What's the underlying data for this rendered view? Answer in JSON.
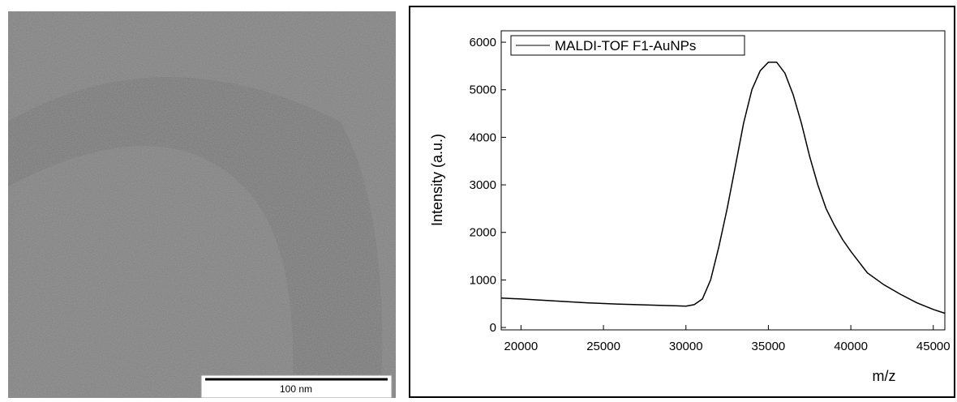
{
  "image": {
    "scale_bar": "100 nm"
  },
  "chart_data": {
    "type": "line",
    "x_label": "m/z",
    "y_label": "Intensity (a.u.)",
    "x": [
      18800,
      20000,
      22000,
      24000,
      26000,
      28000,
      29500,
      30000,
      30500,
      31000,
      31500,
      32000,
      32500,
      33000,
      33500,
      34000,
      34500,
      35000,
      35500,
      36000,
      36500,
      37000,
      37500,
      38000,
      38500,
      39000,
      39500,
      40000,
      41000,
      42000,
      43000,
      44000,
      45000,
      45700
    ],
    "series": [
      {
        "name": "MALDI-TOF F1-AuNPs",
        "color": "#000000",
        "values": [
          620,
          600,
          560,
          520,
          490,
          470,
          455,
          450,
          480,
          600,
          1000,
          1700,
          2500,
          3400,
          4300,
          5000,
          5400,
          5580,
          5580,
          5350,
          4900,
          4300,
          3600,
          3000,
          2500,
          2150,
          1850,
          1600,
          1150,
          900,
          700,
          520,
          380,
          300
        ]
      }
    ],
    "xlim": [
      18800,
      45700
    ],
    "xticks": [
      20000,
      25000,
      30000,
      35000,
      40000,
      45000
    ],
    "ylim": [
      -50,
      6240
    ],
    "yticks": [
      0,
      1000,
      2000,
      3000,
      4000,
      5000,
      6000
    ],
    "legend": "top-left",
    "grid": false
  }
}
